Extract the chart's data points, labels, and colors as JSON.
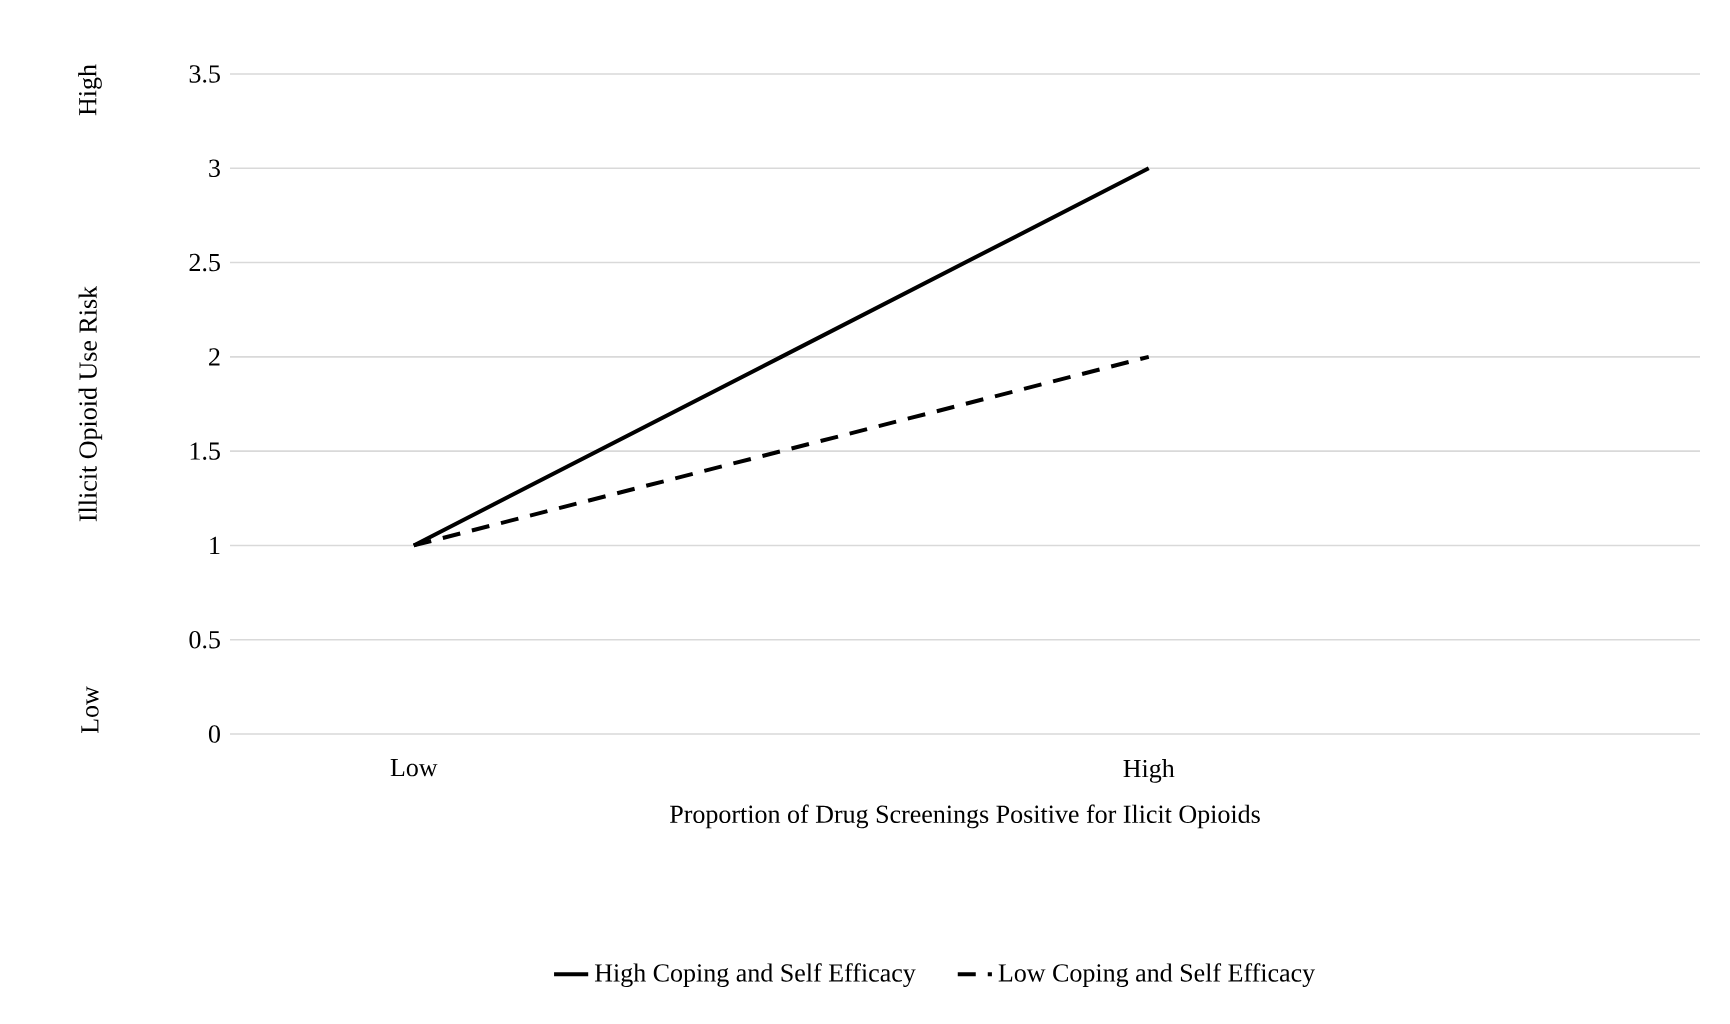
{
  "chart_data": {
    "type": "line",
    "xlabel": "Proportion of Drug Screenings Positive for Ilicit Opioids",
    "ylabel": "Illicit Opioid Use Risk",
    "annotations": [
      "High",
      "Low"
    ],
    "categories": [
      "Low",
      null,
      "High",
      null
    ],
    "series": [
      {
        "name": "High Coping and Self Efficacy",
        "color": "#000000",
        "line_style": "solid",
        "values": [
          1,
          2,
          3,
          null
        ]
      },
      {
        "name": "Low Coping and Self Efficacy",
        "color": "#000000",
        "line_style": "dashed",
        "values": [
          1,
          1.5,
          2,
          null
        ]
      }
    ],
    "ylim": [
      0,
      3.5
    ],
    "yticks": [
      0,
      0.5,
      1,
      1.5,
      2,
      2.5,
      3,
      3.5
    ],
    "grid": "y",
    "legend": "bottom"
  }
}
